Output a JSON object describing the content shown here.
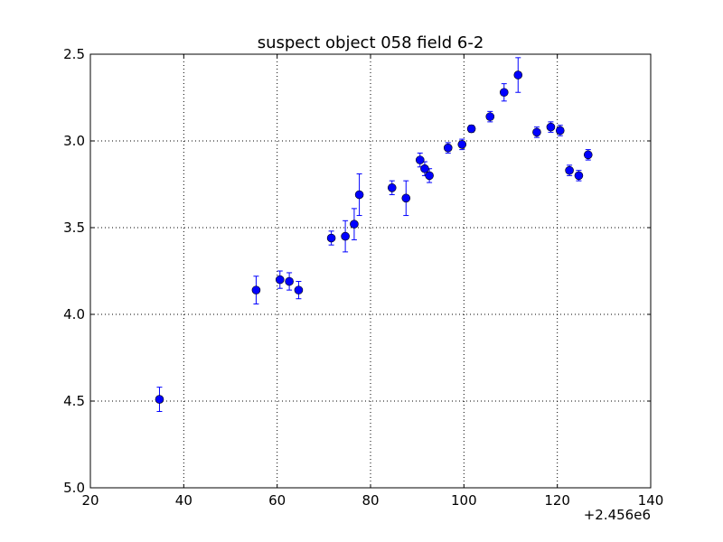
{
  "chart_data": {
    "type": "scatter",
    "title": "suspect object 058 field 6-2",
    "xlabel": "",
    "ylabel": "",
    "x_offset_label": "+2.456e6",
    "xlim": [
      20,
      140
    ],
    "ylim": [
      2.5,
      5.0
    ],
    "y_inverted": true,
    "grid": true,
    "x_ticks": [
      20,
      40,
      60,
      80,
      100,
      120,
      140
    ],
    "x_tick_labels": [
      "20",
      "40",
      "60",
      "80",
      "100",
      "120",
      "140"
    ],
    "y_ticks": [
      2.5,
      3.0,
      3.5,
      4.0,
      4.5,
      5.0
    ],
    "y_tick_labels": [
      "2.5",
      "3.0",
      "3.5",
      "4.0",
      "4.5",
      "5.0"
    ],
    "colors": {
      "marker": "#0000ff",
      "errorbar": "#0000ff",
      "marker_edge": "#000000"
    },
    "series": [
      {
        "points": [
          {
            "x": 34.8,
            "y": 4.49,
            "err": 0.07
          },
          {
            "x": 55.5,
            "y": 3.86,
            "err": 0.08
          },
          {
            "x": 60.6,
            "y": 3.8,
            "err": 0.05
          },
          {
            "x": 62.6,
            "y": 3.81,
            "err": 0.05
          },
          {
            "x": 64.6,
            "y": 3.86,
            "err": 0.05
          },
          {
            "x": 71.6,
            "y": 3.56,
            "err": 0.04
          },
          {
            "x": 74.6,
            "y": 3.55,
            "err": 0.09
          },
          {
            "x": 76.5,
            "y": 3.48,
            "err": 0.09
          },
          {
            "x": 77.6,
            "y": 3.31,
            "err": 0.12
          },
          {
            "x": 84.6,
            "y": 3.27,
            "err": 0.04
          },
          {
            "x": 87.6,
            "y": 3.33,
            "err": 0.1
          },
          {
            "x": 90.6,
            "y": 3.11,
            "err": 0.04
          },
          {
            "x": 91.6,
            "y": 3.16,
            "err": 0.04
          },
          {
            "x": 92.6,
            "y": 3.2,
            "err": 0.04
          },
          {
            "x": 96.6,
            "y": 3.04,
            "err": 0.03
          },
          {
            "x": 99.6,
            "y": 3.02,
            "err": 0.03
          },
          {
            "x": 101.6,
            "y": 2.93,
            "err": 0.02
          },
          {
            "x": 105.6,
            "y": 2.86,
            "err": 0.03
          },
          {
            "x": 108.6,
            "y": 2.72,
            "err": 0.05
          },
          {
            "x": 111.6,
            "y": 2.62,
            "err": 0.1
          },
          {
            "x": 115.6,
            "y": 2.95,
            "err": 0.03
          },
          {
            "x": 118.6,
            "y": 2.92,
            "err": 0.03
          },
          {
            "x": 120.6,
            "y": 2.94,
            "err": 0.03
          },
          {
            "x": 122.6,
            "y": 3.17,
            "err": 0.03
          },
          {
            "x": 124.6,
            "y": 3.2,
            "err": 0.03
          },
          {
            "x": 126.6,
            "y": 3.08,
            "err": 0.03
          }
        ]
      }
    ]
  }
}
